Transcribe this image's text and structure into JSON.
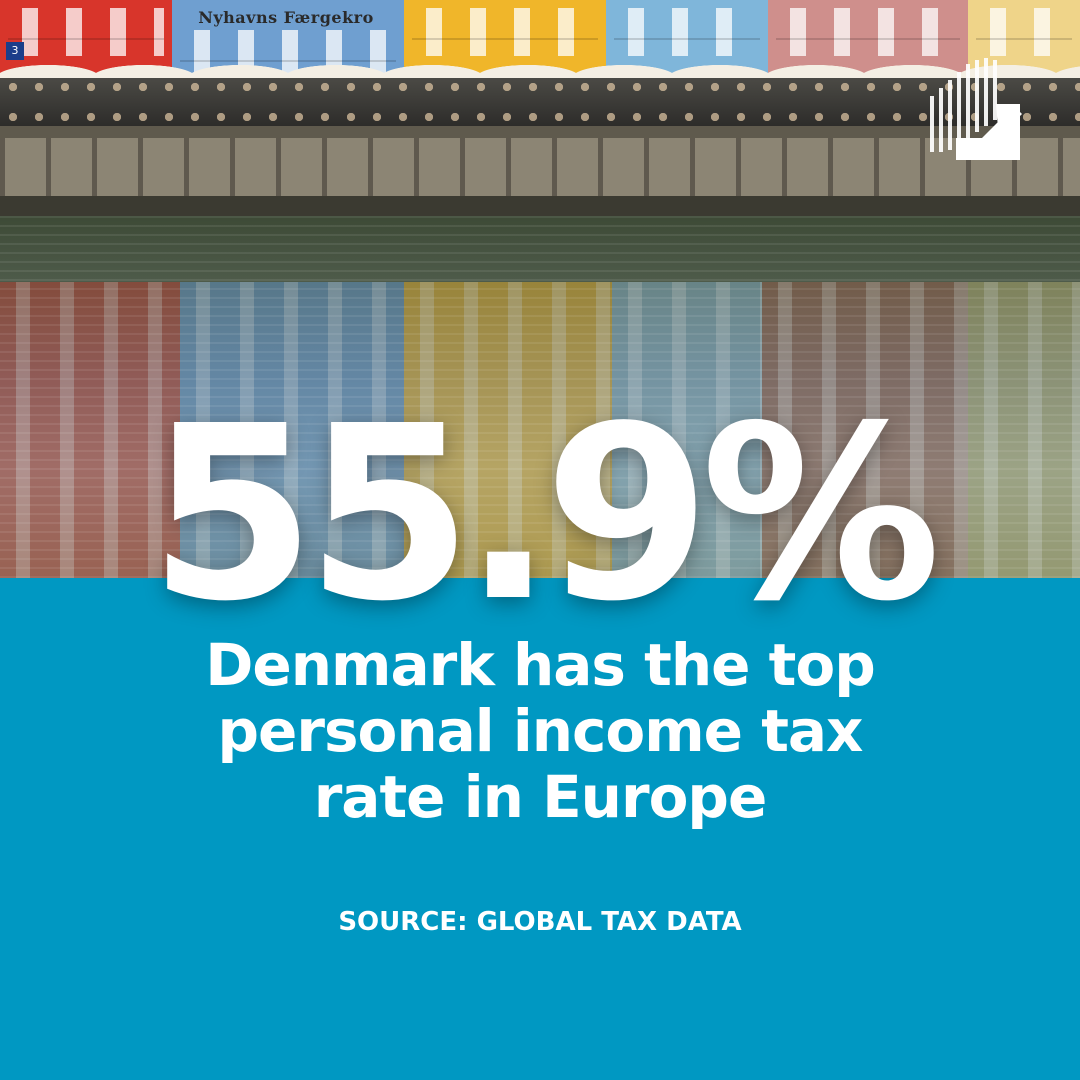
{
  "photo": {
    "scene": "canal-waterfront-photo",
    "facade_sign": "Nyhavns Færgekro",
    "door_number": "3"
  },
  "logo": {
    "icon": "arrow-up-right-logo-icon"
  },
  "stat": {
    "value": "55.9%"
  },
  "headline": {
    "line1": "Denmark has the top",
    "line2": "personal income tax",
    "line3": "rate in Europe"
  },
  "source": {
    "text": "SOURCE: GLOBAL TAX DATA"
  },
  "colors": {
    "panel_blue": "#0098c2",
    "text_white": "#ffffff"
  }
}
